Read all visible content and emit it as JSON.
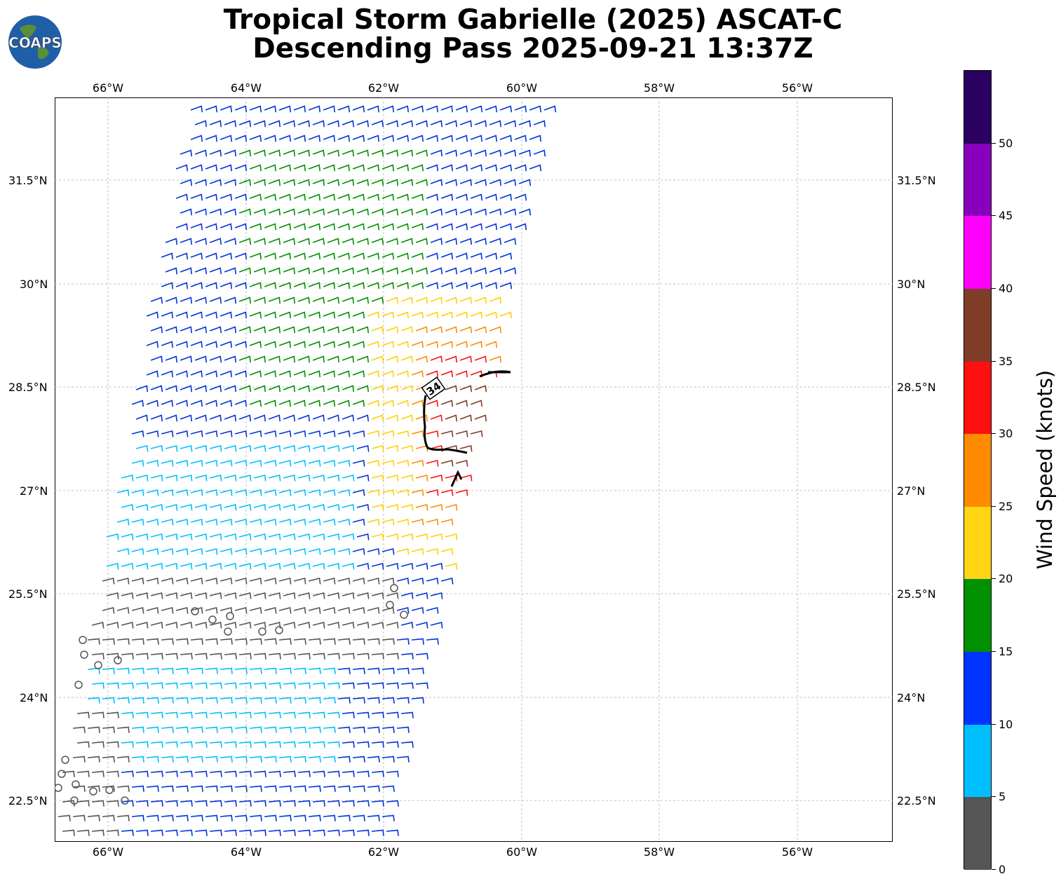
{
  "header": {
    "title_line1": "Tropical Storm Gabrielle (2025) ASCAT-C",
    "title_line2": "Descending Pass 2025-09-21 13:37Z",
    "logo_text": "COAPS"
  },
  "map": {
    "lon_labels": [
      "66°W",
      "64°W",
      "62°W",
      "60°W",
      "58°W",
      "56°W"
    ],
    "lat_labels": [
      "31.5°N",
      "30°N",
      "28.5°N",
      "27°N",
      "25.5°N",
      "24°N",
      "22.5°N"
    ],
    "gridlines": true,
    "contour_label": "34",
    "colors": {
      "barb_0_5": "#555555",
      "barb_5_10": "#00bfff",
      "barb_10_15": "#0033dd",
      "barb_15_20": "#009000",
      "barb_20_25": "#ffd000",
      "barb_25_30": "#ff8c00",
      "barb_30_35": "#ff1010",
      "barb_35_40": "#7f3d28"
    }
  },
  "colorbar": {
    "label": "Wind Speed (knots)",
    "tick_labels": [
      "0",
      "5",
      "10",
      "15",
      "20",
      "25",
      "30",
      "35",
      "40",
      "45",
      "50"
    ],
    "colors": [
      "#555555",
      "#00bfff",
      "#0033ff",
      "#009000",
      "#ffd514",
      "#ff8c00",
      "#ff1010",
      "#7f3d28",
      "#ff00ff",
      "#8800bb",
      "#2a0060"
    ]
  }
}
